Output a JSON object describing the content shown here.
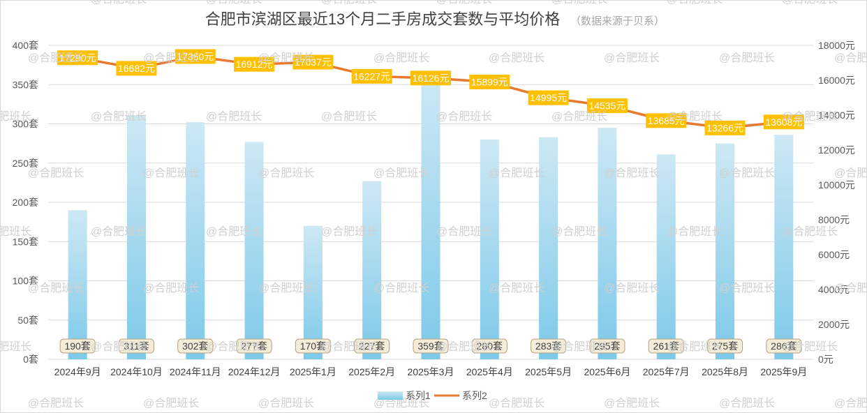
{
  "chart_data": {
    "type": "bar+line",
    "title": "合肥市滨湖区最近13个月二手房成交套数与平均价格",
    "subtitle": "（数据来源于贝系）",
    "categories": [
      "2024年9月",
      "2024年10月",
      "2024年11月",
      "2024年12月",
      "2025年1月",
      "2025年2月",
      "2025年3月",
      "2025年4月",
      "2025年5月",
      "2025年6月",
      "2025年7月",
      "2025年8月",
      "2025年9月"
    ],
    "series": [
      {
        "name": "系列1",
        "type": "bar",
        "axis": "left",
        "values": [
          190,
          311,
          302,
          277,
          170,
          227,
          359,
          280,
          283,
          295,
          261,
          275,
          286
        ],
        "labels": [
          "190套",
          "311套",
          "302套",
          "277套",
          "170套",
          "227套",
          "359套",
          "280套",
          "283套",
          "295套",
          "261套",
          "275套",
          "286套"
        ]
      },
      {
        "name": "系列2",
        "type": "line",
        "axis": "right",
        "values": [
          17290,
          16682,
          17360,
          16912,
          17037,
          16227,
          16126,
          15899,
          14995,
          14535,
          13685,
          13266,
          13608
        ],
        "labels": [
          "17290元",
          "16682元",
          "17360元",
          "16912元",
          "17037元",
          "16227元",
          "16126元",
          "15899元",
          "14995元",
          "14535元",
          "13685元",
          "13266元",
          "13608元"
        ]
      }
    ],
    "y_left": {
      "range": [
        0,
        400
      ],
      "ticks": [
        "0套",
        "50套",
        "100套",
        "150套",
        "200套",
        "250套",
        "300套",
        "350套",
        "400套"
      ]
    },
    "y_right": {
      "range": [
        0,
        18000
      ],
      "ticks": [
        "0元",
        "2000元",
        "4000元",
        "6000元",
        "8000元",
        "10000元",
        "12000元",
        "14000元",
        "16000元",
        "18000元"
      ]
    },
    "legend": {
      "position": "bottom",
      "entries": [
        "系列1",
        "系列2"
      ]
    },
    "grid": true,
    "colors": {
      "bar_top": "#cde8f4",
      "bar_bottom": "#7cc9e9",
      "line": "#e8792f",
      "line_label_bg": "#ffc000",
      "bar_label_bg": "#f5ecd9",
      "bar_label_border": "#b7a07a",
      "grid": "#d9d9d9"
    }
  },
  "watermark": "@合肥班长"
}
